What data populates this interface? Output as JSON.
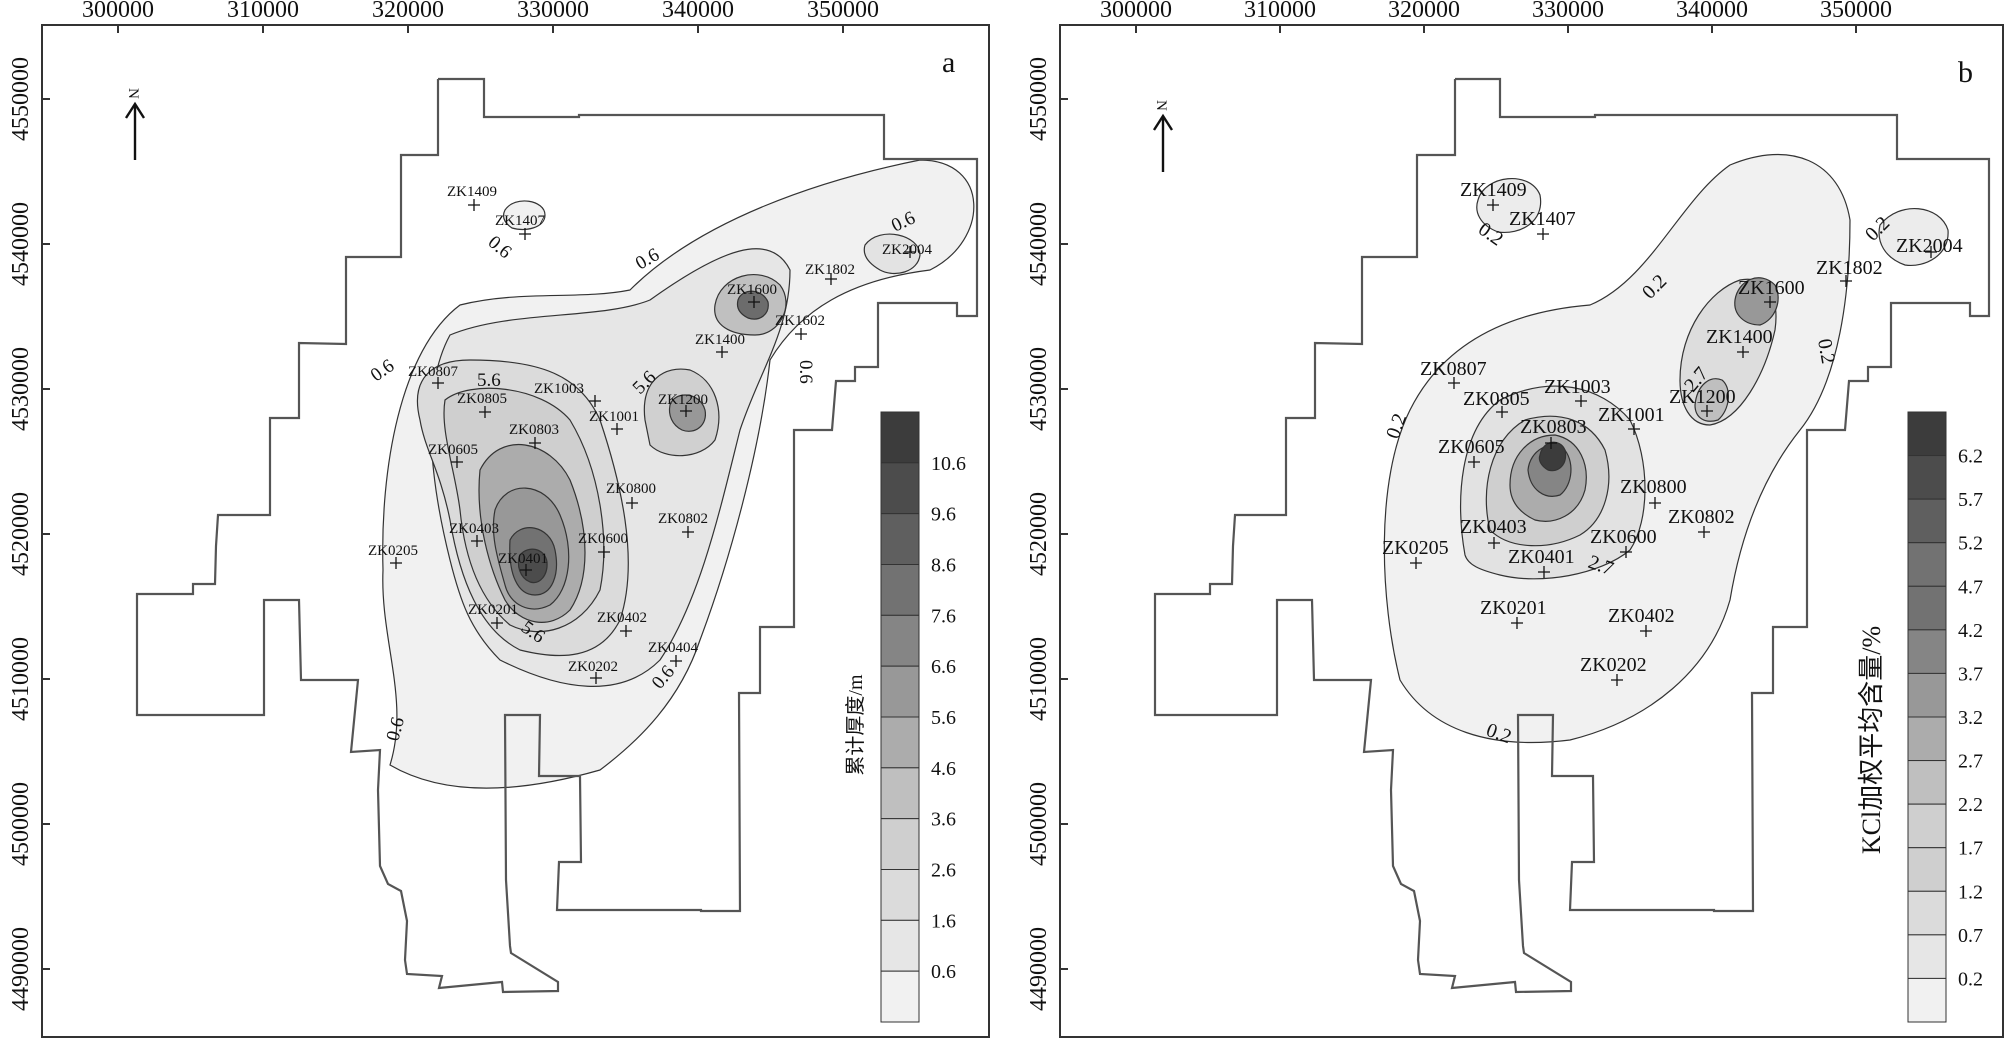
{
  "axes": {
    "x_ticks": [
      "300000",
      "310000",
      "320000",
      "330000",
      "340000",
      "350000"
    ],
    "y_ticks": [
      "4550000",
      "4540000",
      "4530000",
      "4520000",
      "4510000",
      "4500000",
      "4490000"
    ]
  },
  "north_label": "N",
  "panels": [
    {
      "letter": "a",
      "colorbar_title": "累计厚度/m",
      "colorbar_ticks": [
        "10.6",
        "9.6",
        "8.6",
        "7.6",
        "6.6",
        "5.6",
        "4.6",
        "3.6",
        "2.6",
        "1.6",
        "0.6"
      ],
      "contour_labels": [
        "0.6",
        "0.6",
        "0.6",
        "0.6",
        "0.6",
        "0.6",
        "5.6",
        "5.6",
        "5.6",
        "0.6"
      ],
      "wells": [
        "ZK1409",
        "ZK1407",
        "ZK2004",
        "ZK1802",
        "ZK1600",
        "ZK1602",
        "ZK1400",
        "ZK0807",
        "ZK0805",
        "ZK1003",
        "ZK1200",
        "ZK1001",
        "ZK0803",
        "ZK0605",
        "ZK0800",
        "ZK0802",
        "ZK0403",
        "ZK0600",
        "ZK0401",
        "ZK0205",
        "ZK0201",
        "ZK0402",
        "ZK0404",
        "ZK0202"
      ]
    },
    {
      "letter": "b",
      "colorbar_title": "KCl加权平均含量/%",
      "colorbar_ticks": [
        "6.2",
        "5.7",
        "5.2",
        "4.7",
        "4.2",
        "3.7",
        "3.2",
        "2.7",
        "2.2",
        "1.7",
        "1.2",
        "0.7",
        "0.2"
      ],
      "contour_labels": [
        "0.2",
        "0.2",
        "0.2",
        "0.2",
        "0.2",
        "0.2",
        "2.7",
        "2.7"
      ],
      "wells": [
        "ZK1409",
        "ZK1407",
        "ZK2004",
        "ZK1802",
        "ZK1600",
        "ZK1400",
        "ZK0807",
        "ZK1200",
        "ZK0805",
        "ZK1003",
        "ZK0803",
        "ZK1001",
        "ZK0605",
        "ZK0800",
        "ZK0802",
        "ZK0403",
        "ZK0600",
        "ZK0205",
        "ZK0401",
        "ZK0201",
        "ZK0402",
        "ZK0202"
      ]
    }
  ],
  "colors": {
    "frame": "#333333",
    "boundary": "#555555",
    "contour": "#333333",
    "fill_levels": [
      "#f1f1f1",
      "#e6e6e6",
      "#dbdbdb",
      "#cfcfcf",
      "#bfbfbf",
      "#acacac",
      "#989898",
      "#858585",
      "#727272",
      "#5f5f5f",
      "#4c4c4c",
      "#3c3c3c"
    ]
  }
}
